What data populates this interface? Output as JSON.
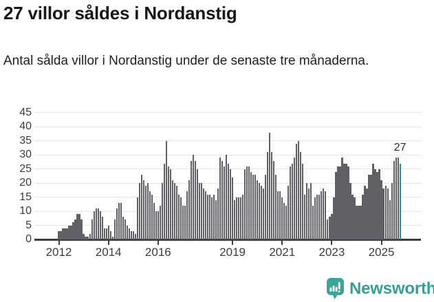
{
  "page": {
    "title": "27 villor såldes i Nordanstig",
    "subtitle": "Antal sålda villor i Nordanstig under de senaste tre månaderna."
  },
  "colors": {
    "bar": "#5f6066",
    "highlight": "#17998f",
    "gridline": "#e4e4e4",
    "axis": "#3c3c3c",
    "tick_text": "#3c3c3c",
    "logo_teal": "#3a9c94"
  },
  "footer": {
    "logo_text": "Newsworthy",
    "logo_icon": "speech-bubble-bar-chart-icon"
  },
  "chart_data": {
    "type": "bar",
    "title": "27 villor såldes i Nordanstig",
    "xlabel": "",
    "ylabel": "",
    "ylim": [
      0,
      45
    ],
    "y_ticks": [
      0,
      5,
      10,
      15,
      20,
      25,
      30,
      35,
      40,
      45
    ],
    "x_tick_labels": [
      "2012",
      "2014",
      "2016",
      "2019",
      "2021",
      "2023",
      "2025"
    ],
    "grid": "horizontal",
    "legend": "none",
    "series": [
      {
        "year": 2012,
        "values": [
          3,
          3,
          4,
          4,
          4,
          5,
          5,
          6,
          7,
          9,
          9,
          7
        ]
      },
      {
        "year": 2013,
        "values": [
          2,
          1,
          1,
          2,
          7,
          10,
          11,
          11,
          10,
          8,
          4,
          4
        ]
      },
      {
        "year": 2014,
        "values": [
          5,
          3,
          1,
          7,
          11,
          13,
          13,
          8,
          7,
          5,
          4,
          3
        ]
      },
      {
        "year": 2015,
        "values": [
          3,
          2,
          15,
          20,
          23,
          21,
          19,
          20,
          17,
          16,
          13,
          10
        ]
      },
      {
        "year": 2016,
        "values": [
          10,
          12,
          20,
          27,
          35,
          26,
          25,
          21,
          20,
          19,
          16,
          15
        ]
      },
      {
        "year": 2017,
        "values": [
          12,
          12,
          17,
          21,
          28,
          30,
          28,
          25,
          20,
          20,
          18,
          17
        ]
      },
      {
        "year": 2018,
        "values": [
          16,
          16,
          15,
          16,
          14,
          18,
          29,
          28,
          26,
          30,
          27,
          25
        ]
      },
      {
        "year": 2019,
        "values": [
          22,
          14,
          15,
          15,
          15,
          16,
          25,
          26,
          26,
          24,
          23,
          23
        ]
      },
      {
        "year": 2020,
        "values": [
          21,
          20,
          19,
          18,
          23,
          31,
          38,
          31,
          28,
          23,
          17,
          17
        ]
      },
      {
        "year": 2021,
        "values": [
          15,
          13,
          12,
          19,
          26,
          27,
          29,
          34,
          35,
          31,
          27,
          16
        ]
      },
      {
        "year": 2022,
        "values": [
          20,
          18,
          20,
          12,
          15,
          16,
          16,
          17,
          18,
          17,
          7,
          8
        ]
      },
      {
        "year": 2023,
        "values": [
          9,
          15,
          24,
          26,
          26,
          29,
          27,
          27,
          26,
          20,
          16,
          15
        ]
      },
      {
        "year": 2024,
        "values": [
          12,
          12,
          12,
          16,
          19,
          18,
          23,
          23,
          27,
          25,
          24,
          25
        ]
      },
      {
        "year": 2025,
        "values": [
          21,
          18,
          19,
          18,
          14,
          20,
          28,
          29,
          29,
          27
        ]
      }
    ],
    "highlight": {
      "position": "last",
      "value": 27,
      "label": "27",
      "color": "#17998f"
    }
  }
}
